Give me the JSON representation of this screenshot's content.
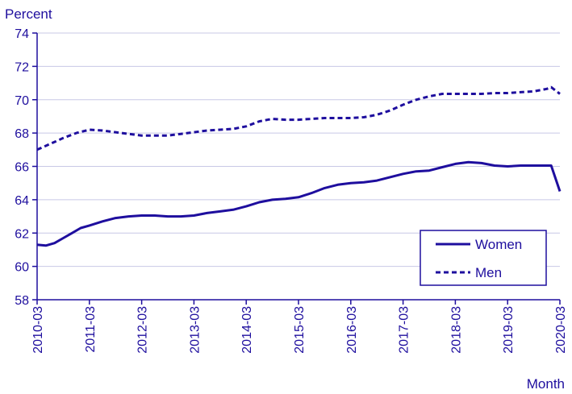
{
  "chart_data": {
    "type": "line",
    "ylabel": "Percent",
    "xlabel": "Month",
    "ylim": [
      58,
      74
    ],
    "yticks": [
      58,
      60,
      62,
      64,
      66,
      68,
      70,
      72,
      74
    ],
    "xticks": [
      "2010-03",
      "2011-03",
      "2012-03",
      "2013-03",
      "2014-03",
      "2015-03",
      "2016-03",
      "2017-03",
      "2018-03",
      "2019-03",
      "2020-03"
    ],
    "grid": "horizontal",
    "legend_position": "bottom-right",
    "colors": {
      "axis": "#1e0e9e",
      "grid": "#c8c8e6",
      "line": "#1e0e9e"
    },
    "series": [
      {
        "name": "Women",
        "style": "solid",
        "points": [
          [
            "2010-03",
            61.3
          ],
          [
            "2010-05",
            61.25
          ],
          [
            "2010-07",
            61.4
          ],
          [
            "2010-09",
            61.7
          ],
          [
            "2010-11",
            62.0
          ],
          [
            "2011-01",
            62.3
          ],
          [
            "2011-03",
            62.45
          ],
          [
            "2011-06",
            62.7
          ],
          [
            "2011-09",
            62.9
          ],
          [
            "2011-12",
            63.0
          ],
          [
            "2012-03",
            63.05
          ],
          [
            "2012-06",
            63.05
          ],
          [
            "2012-09",
            63.0
          ],
          [
            "2012-12",
            63.0
          ],
          [
            "2013-03",
            63.05
          ],
          [
            "2013-06",
            63.2
          ],
          [
            "2013-09",
            63.3
          ],
          [
            "2013-12",
            63.4
          ],
          [
            "2014-03",
            63.6
          ],
          [
            "2014-06",
            63.85
          ],
          [
            "2014-09",
            64.0
          ],
          [
            "2014-12",
            64.05
          ],
          [
            "2015-03",
            64.15
          ],
          [
            "2015-06",
            64.4
          ],
          [
            "2015-09",
            64.7
          ],
          [
            "2015-12",
            64.9
          ],
          [
            "2016-03",
            65.0
          ],
          [
            "2016-06",
            65.05
          ],
          [
            "2016-09",
            65.15
          ],
          [
            "2016-12",
            65.35
          ],
          [
            "2017-03",
            65.55
          ],
          [
            "2017-06",
            65.7
          ],
          [
            "2017-09",
            65.75
          ],
          [
            "2017-12",
            65.95
          ],
          [
            "2018-03",
            66.15
          ],
          [
            "2018-06",
            66.25
          ],
          [
            "2018-09",
            66.2
          ],
          [
            "2018-12",
            66.05
          ],
          [
            "2019-03",
            66.0
          ],
          [
            "2019-06",
            66.05
          ],
          [
            "2019-09",
            66.05
          ],
          [
            "2019-12",
            66.05
          ],
          [
            "2020-01",
            66.05
          ],
          [
            "2020-03",
            64.5
          ]
        ]
      },
      {
        "name": "Men",
        "style": "dashed",
        "points": [
          [
            "2010-03",
            67.0
          ],
          [
            "2010-06",
            67.35
          ],
          [
            "2010-09",
            67.7
          ],
          [
            "2010-12",
            68.0
          ],
          [
            "2011-03",
            68.2
          ],
          [
            "2011-06",
            68.15
          ],
          [
            "2011-09",
            68.05
          ],
          [
            "2011-12",
            67.95
          ],
          [
            "2012-03",
            67.85
          ],
          [
            "2012-06",
            67.85
          ],
          [
            "2012-09",
            67.85
          ],
          [
            "2012-12",
            67.95
          ],
          [
            "2013-03",
            68.05
          ],
          [
            "2013-06",
            68.15
          ],
          [
            "2013-09",
            68.2
          ],
          [
            "2013-12",
            68.25
          ],
          [
            "2014-03",
            68.4
          ],
          [
            "2014-06",
            68.7
          ],
          [
            "2014-09",
            68.85
          ],
          [
            "2014-12",
            68.8
          ],
          [
            "2015-03",
            68.8
          ],
          [
            "2015-06",
            68.85
          ],
          [
            "2015-09",
            68.9
          ],
          [
            "2015-12",
            68.9
          ],
          [
            "2016-03",
            68.9
          ],
          [
            "2016-06",
            68.95
          ],
          [
            "2016-09",
            69.1
          ],
          [
            "2016-12",
            69.35
          ],
          [
            "2017-03",
            69.7
          ],
          [
            "2017-06",
            70.0
          ],
          [
            "2017-09",
            70.2
          ],
          [
            "2017-12",
            70.35
          ],
          [
            "2018-03",
            70.35
          ],
          [
            "2018-06",
            70.35
          ],
          [
            "2018-09",
            70.35
          ],
          [
            "2018-12",
            70.4
          ],
          [
            "2019-03",
            70.4
          ],
          [
            "2019-06",
            70.45
          ],
          [
            "2019-09",
            70.5
          ],
          [
            "2019-12",
            70.65
          ],
          [
            "2020-01",
            70.75
          ],
          [
            "2020-03",
            70.35
          ]
        ]
      }
    ]
  }
}
